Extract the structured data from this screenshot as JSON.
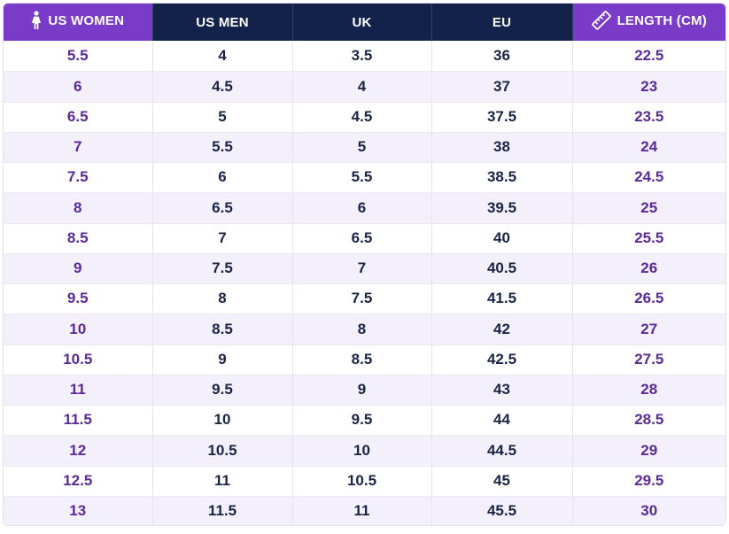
{
  "headers": [
    {
      "label": "US WOMEN",
      "icon": "woman-icon"
    },
    {
      "label": "US MEN"
    },
    {
      "label": "UK"
    },
    {
      "label": "EU"
    },
    {
      "label": "LENGTH (CM)",
      "icon": "ruler-icon"
    }
  ],
  "colors": {
    "accent_purple": "#7a3cc8",
    "header_navy": "#13224a",
    "value_purple": "#5b2a9a",
    "value_navy": "#1a2447",
    "stripe": "#f3effb"
  },
  "rows": [
    [
      "5.5",
      "4",
      "3.5",
      "36",
      "22.5"
    ],
    [
      "6",
      "4.5",
      "4",
      "37",
      "23"
    ],
    [
      "6.5",
      "5",
      "4.5",
      "37.5",
      "23.5"
    ],
    [
      "7",
      "5.5",
      "5",
      "38",
      "24"
    ],
    [
      "7.5",
      "6",
      "5.5",
      "38.5",
      "24.5"
    ],
    [
      "8",
      "6.5",
      "6",
      "39.5",
      "25"
    ],
    [
      "8.5",
      "7",
      "6.5",
      "40",
      "25.5"
    ],
    [
      "9",
      "7.5",
      "7",
      "40.5",
      "26"
    ],
    [
      "9.5",
      "8",
      "7.5",
      "41.5",
      "26.5"
    ],
    [
      "10",
      "8.5",
      "8",
      "42",
      "27"
    ],
    [
      "10.5",
      "9",
      "8.5",
      "42.5",
      "27.5"
    ],
    [
      "11",
      "9.5",
      "9",
      "43",
      "28"
    ],
    [
      "11.5",
      "10",
      "9.5",
      "44",
      "28.5"
    ],
    [
      "12",
      "10.5",
      "10",
      "44.5",
      "29"
    ],
    [
      "12.5",
      "11",
      "10.5",
      "45",
      "29.5"
    ],
    [
      "13",
      "11.5",
      "11",
      "45.5",
      "30"
    ]
  ]
}
